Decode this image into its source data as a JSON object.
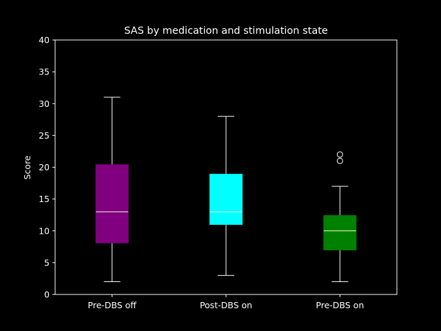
{
  "chart_data": {
    "type": "box",
    "title": "SAS by medication and stimulation state",
    "xlabel": "",
    "ylabel": "Score",
    "ylim": [
      0,
      40
    ],
    "yticks": [
      "0",
      "5",
      "10",
      "15",
      "20",
      "25",
      "30",
      "35",
      "40"
    ],
    "grid": false,
    "background": "#000000",
    "categories": [
      "Pre-DBS off",
      "Post-DBS on",
      "Pre-DBS on"
    ],
    "boxes": [
      {
        "name": "Pre-DBS off",
        "whisker_low": 2,
        "q1": 8.1,
        "median": 13,
        "q3": 20.4,
        "whisker_high": 31,
        "outliers": [],
        "color": "#800080"
      },
      {
        "name": "Post-DBS on",
        "whisker_low": 3,
        "q1": 11,
        "median": 13,
        "q3": 18.9,
        "whisker_high": 28,
        "outliers": [],
        "color": "#00ffff"
      },
      {
        "name": "Pre-DBS on",
        "whisker_low": 2,
        "q1": 7,
        "median": 10,
        "q3": 12.4,
        "whisker_high": 17,
        "outliers": [
          21,
          22
        ],
        "color": "#008000"
      }
    ]
  }
}
